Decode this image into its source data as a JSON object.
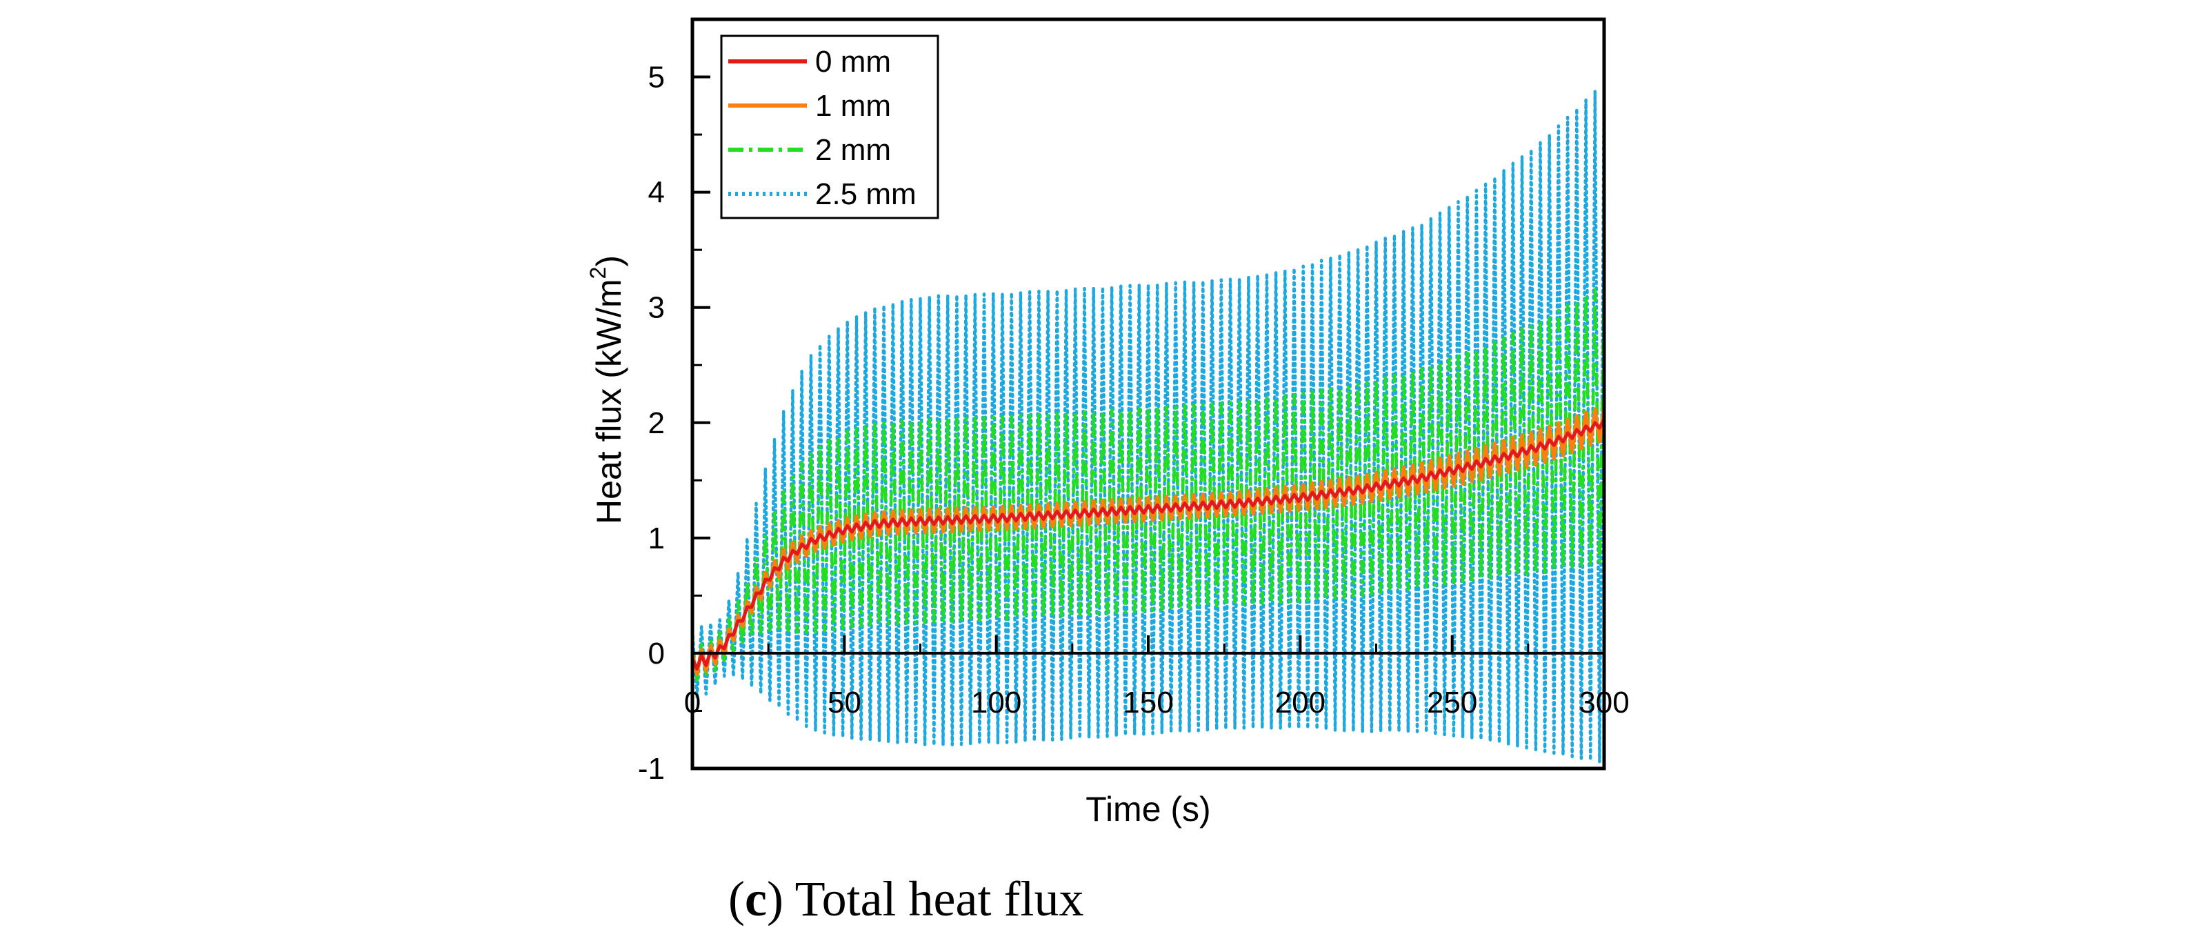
{
  "caption": {
    "open_paren": "(",
    "panel_letter": "c",
    "close_paren": ")",
    "text": " Total heat flux"
  },
  "chart_data": {
    "type": "line",
    "title": "",
    "xlabel": "Time (s)",
    "ylabel_prefix": "Heat flux (kW/m",
    "ylabel_sup": "2",
    "ylabel_suffix": ")",
    "xlim": [
      0,
      300
    ],
    "ylim": [
      -1,
      5.5
    ],
    "xticks": [
      0,
      50,
      100,
      150,
      200,
      250,
      300
    ],
    "xtick_labels": [
      "0",
      "50",
      "100",
      "150",
      "200",
      "250",
      "300"
    ],
    "yticks": [
      -1,
      0,
      1,
      2,
      3,
      4,
      5
    ],
    "ytick_labels": [
      "-1",
      "0",
      "1",
      "2",
      "3",
      "4",
      "5"
    ],
    "legend_position": "top-left",
    "grid": false,
    "oscillation_period_s": 3,
    "series": [
      {
        "name": "0 mm",
        "color": "#e31a1c",
        "style": "solid",
        "x": [
          0,
          5,
          10,
          15,
          20,
          25,
          30,
          35,
          40,
          50,
          60,
          70,
          80,
          100,
          120,
          150,
          180,
          200,
          220,
          240,
          260,
          280,
          300
        ],
        "mean": [
          -0.1,
          -0.05,
          0.05,
          0.25,
          0.45,
          0.65,
          0.8,
          0.9,
          0.98,
          1.07,
          1.12,
          1.14,
          1.15,
          1.17,
          1.2,
          1.25,
          1.3,
          1.35,
          1.42,
          1.52,
          1.65,
          1.8,
          2.0
        ],
        "amplitude": [
          0.05,
          0.05,
          0.03,
          0.03,
          0.03,
          0.03,
          0.03,
          0.03,
          0.03,
          0.03,
          0.03,
          0.03,
          0.03,
          0.03,
          0.03,
          0.03,
          0.03,
          0.03,
          0.03,
          0.03,
          0.03,
          0.03,
          0.03
        ]
      },
      {
        "name": "1 mm",
        "color": "#ff7f0e",
        "style": "solid",
        "x": [
          0,
          5,
          10,
          15,
          20,
          25,
          30,
          35,
          40,
          50,
          60,
          70,
          80,
          100,
          120,
          150,
          180,
          200,
          220,
          240,
          260,
          280,
          300
        ],
        "mean": [
          -0.1,
          -0.05,
          0.05,
          0.25,
          0.45,
          0.65,
          0.8,
          0.9,
          0.98,
          1.07,
          1.12,
          1.14,
          1.15,
          1.17,
          1.2,
          1.25,
          1.3,
          1.35,
          1.42,
          1.52,
          1.65,
          1.8,
          2.0
        ],
        "amplitude": [
          0.1,
          0.1,
          0.08,
          0.08,
          0.08,
          0.09,
          0.1,
          0.1,
          0.1,
          0.1,
          0.1,
          0.1,
          0.1,
          0.1,
          0.1,
          0.1,
          0.1,
          0.11,
          0.12,
          0.13,
          0.14,
          0.15,
          0.15
        ]
      },
      {
        "name": "2 mm",
        "color": "#22dd22",
        "style": "dashdot",
        "x": [
          0,
          5,
          10,
          15,
          20,
          25,
          30,
          35,
          40,
          50,
          60,
          70,
          80,
          100,
          120,
          150,
          180,
          200,
          220,
          240,
          260,
          280,
          300
        ],
        "mean": [
          -0.1,
          -0.05,
          0.05,
          0.25,
          0.45,
          0.65,
          0.8,
          0.9,
          0.98,
          1.07,
          1.12,
          1.14,
          1.15,
          1.17,
          1.2,
          1.25,
          1.3,
          1.35,
          1.42,
          1.52,
          1.65,
          1.8,
          2.0
        ],
        "amplitude": [
          0.15,
          0.15,
          0.15,
          0.2,
          0.3,
          0.45,
          0.6,
          0.72,
          0.8,
          0.85,
          0.87,
          0.88,
          0.88,
          0.88,
          0.88,
          0.88,
          0.88,
          0.9,
          0.92,
          0.95,
          1.0,
          1.1,
          1.2
        ]
      },
      {
        "name": "2.5 mm",
        "color": "#1ea8e0",
        "style": "dotted",
        "x": [
          0,
          5,
          10,
          15,
          20,
          25,
          30,
          35,
          40,
          50,
          60,
          70,
          80,
          100,
          120,
          150,
          180,
          200,
          220,
          240,
          260,
          280,
          300
        ],
        "mean": [
          -0.1,
          -0.05,
          0.05,
          0.25,
          0.45,
          0.65,
          0.8,
          0.9,
          0.98,
          1.07,
          1.12,
          1.14,
          1.15,
          1.17,
          1.2,
          1.25,
          1.3,
          1.35,
          1.42,
          1.52,
          1.65,
          1.8,
          2.0
        ],
        "amplitude": [
          0.3,
          0.3,
          0.25,
          0.45,
          0.75,
          1.05,
          1.3,
          1.5,
          1.65,
          1.8,
          1.88,
          1.92,
          1.95,
          1.95,
          1.95,
          1.95,
          1.95,
          2.0,
          2.1,
          2.2,
          2.4,
          2.65,
          2.95
        ]
      }
    ]
  }
}
